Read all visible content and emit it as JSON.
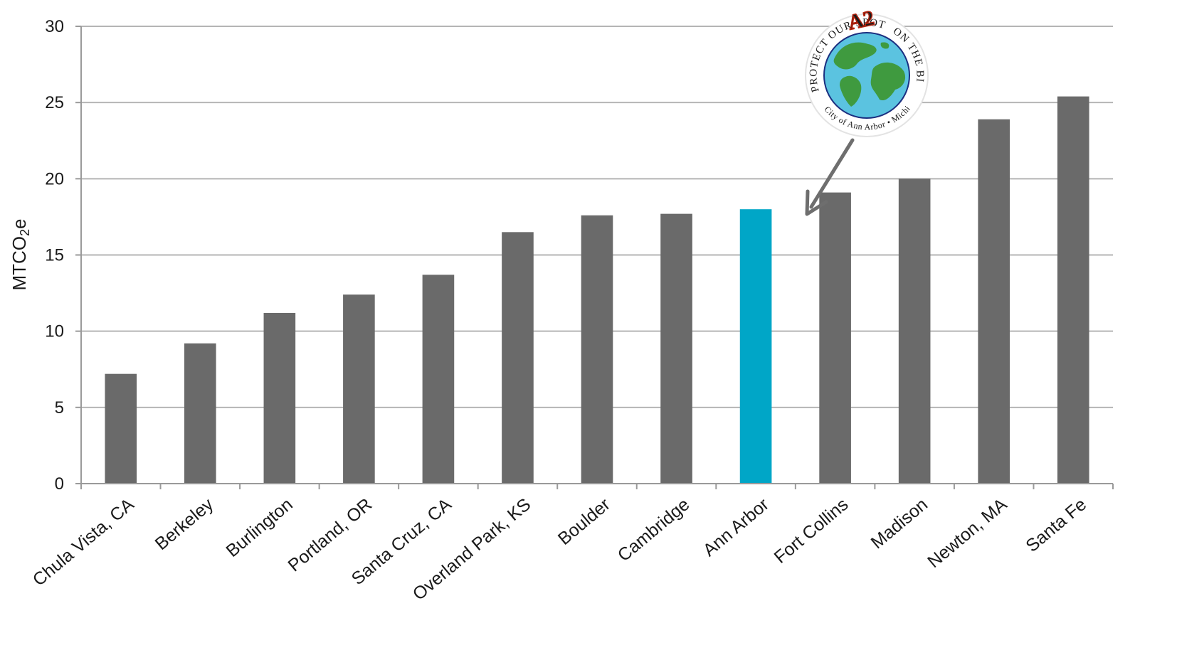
{
  "chart_data": {
    "type": "bar",
    "title": "",
    "xlabel": "",
    "ylabel": "MTCO2e",
    "ylabel_parts": {
      "main": "MTCO",
      "sub": "2",
      "tail": "e"
    },
    "ylim": [
      0,
      30
    ],
    "yticks": [
      0,
      5,
      10,
      15,
      20,
      25,
      30
    ],
    "grid": true,
    "categories": [
      "Chula Vista, CA",
      "Berkeley",
      "Burlington",
      "Portland, OR",
      "Santa Cruz, CA",
      "Overland Park, KS",
      "Boulder",
      "Cambridge",
      "Ann Arbor",
      "Fort Collins",
      "Madison",
      "Newton, MA",
      "Santa Fe"
    ],
    "values": [
      7.2,
      9.2,
      11.2,
      12.4,
      13.7,
      16.5,
      17.6,
      17.7,
      18.0,
      19.1,
      20.0,
      23.9,
      25.4
    ],
    "highlight_category": "Ann Arbor",
    "colors": {
      "bar": "#6a6a6a",
      "highlight": "#00a6c7",
      "grid": "#b5b5b5",
      "axis": "#9a9a9a",
      "arrow": "#6e6e6e"
    }
  },
  "annotation": {
    "logo_name": "ann-arbor-city-seal",
    "logo_top_text": "PROTECT OUR SPOT",
    "logo_right_text": "ON THE BIG BLUE DOT",
    "logo_bottom_text": "City of Ann Arbor • Michigan",
    "logo_badge": "A2",
    "points_to": "Ann Arbor",
    "colors": {
      "ocean": "#5bc3e0",
      "land": "#3f9a3f",
      "ring_text": "#2b3a8c",
      "badge": "#f2b51c"
    }
  }
}
